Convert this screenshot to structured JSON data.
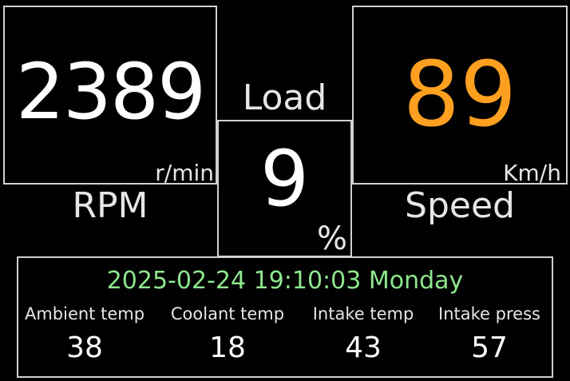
{
  "rpm": {
    "value": "2389",
    "unit": "r/min",
    "label": "RPM"
  },
  "load": {
    "label": "Load",
    "value": "9",
    "unit": "%"
  },
  "speed": {
    "value": "89",
    "unit": "Km/h",
    "label": "Speed"
  },
  "info": {
    "datetime": "2025-02-24 19:10:03 Monday",
    "sensors": [
      {
        "label": "Ambient temp",
        "value": "38"
      },
      {
        "label": "Coolant temp",
        "value": "18"
      },
      {
        "label": "Intake temp",
        "value": "43"
      },
      {
        "label": "Intake press",
        "value": "57"
      }
    ]
  },
  "colors": {
    "speed_value": "#ffa020",
    "datetime": "#8ee68e",
    "border": "#d0d0d0",
    "background": "#000000"
  }
}
